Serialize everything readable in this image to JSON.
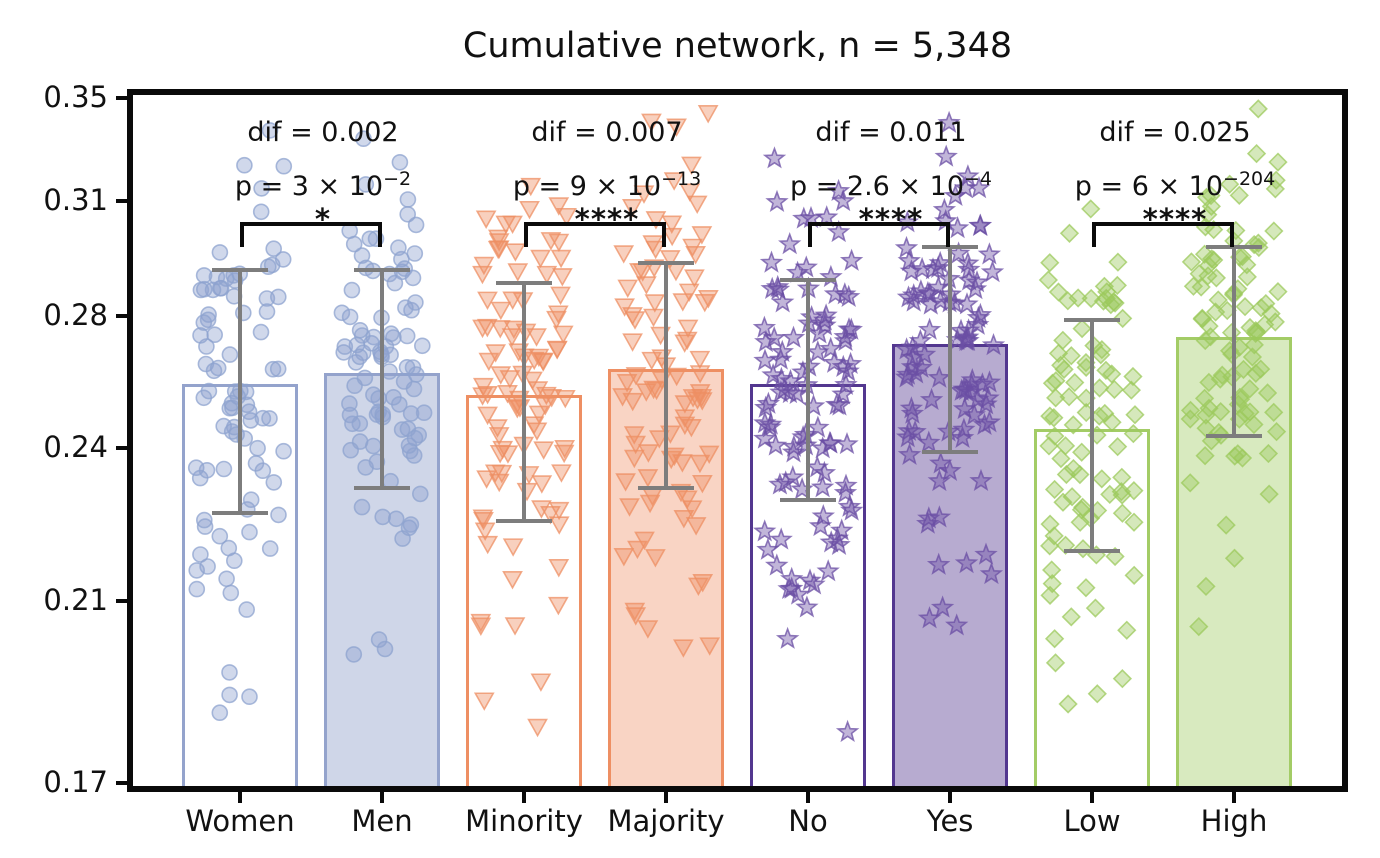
{
  "title": "Cumulative network, n = 5,348",
  "chart_data": {
    "type": "bar",
    "title": "Cumulative network, n = 5,348",
    "y_scale": "log",
    "ylim": [
      0.17,
      0.35
    ],
    "grid": false,
    "yticks": [
      {
        "value": 0.35,
        "label": "0.35"
      },
      {
        "value": 0.314,
        "label": "0.31"
      },
      {
        "value": 0.278,
        "label": "0.28"
      },
      {
        "value": 0.242,
        "label": "0.24"
      },
      {
        "value": 0.206,
        "label": "0.21"
      },
      {
        "value": 0.17,
        "label": "0.17"
      }
    ],
    "categories": [
      "Women",
      "Men",
      "Minority",
      "Majority",
      "No",
      "Yes",
      "Low",
      "High"
    ],
    "groups": [
      {
        "label": "Women",
        "mean": 0.259,
        "sd": 0.033,
        "filled": false,
        "marker": "circle",
        "edge_color": "#94a3cc",
        "fill_color": "rgba(148,163,204,0.45)",
        "marker_color": "#8ea3cf",
        "n_points": 88
      },
      {
        "label": "Men",
        "mean": 0.262,
        "sd": 0.03,
        "filled": true,
        "marker": "circle",
        "edge_color": "#94a3cc",
        "fill_color": "rgba(148,163,204,0.45)",
        "marker_color": "#8ea3cf",
        "n_points": 92
      },
      {
        "label": "Minority",
        "mean": 0.256,
        "sd": 0.032,
        "filled": false,
        "marker": "triangle",
        "edge_color": "#ee8f63",
        "fill_color": "rgba(238,143,99,0.38)",
        "marker_color": "#ee8f63",
        "n_points": 102
      },
      {
        "label": "Majority",
        "mean": 0.263,
        "sd": 0.031,
        "filled": true,
        "marker": "triangle",
        "edge_color": "#ee8f63",
        "fill_color": "rgba(238,143,99,0.38)",
        "marker_color": "#ee8f63",
        "n_points": 96
      },
      {
        "label": "No",
        "mean": 0.259,
        "sd": 0.03,
        "filled": false,
        "marker": "star",
        "edge_color": "#53378f",
        "fill_color": "rgba(83,55,143,0.42)",
        "marker_color": "#6b4fa4",
        "n_points": 108
      },
      {
        "label": "Yes",
        "mean": 0.27,
        "sd": 0.029,
        "filled": true,
        "marker": "star",
        "edge_color": "#53378f",
        "fill_color": "rgba(83,55,143,0.42)",
        "marker_color": "#6b4fa4",
        "n_points": 104
      },
      {
        "label": "Low",
        "mean": 0.247,
        "sd": 0.03,
        "filled": false,
        "marker": "diamond",
        "edge_color": "#a3cc66",
        "fill_color": "rgba(163,204,102,0.42)",
        "marker_color": "#9cc95c",
        "n_points": 96
      },
      {
        "label": "High",
        "mean": 0.272,
        "sd": 0.027,
        "filled": true,
        "marker": "diamond",
        "edge_color": "#a3cc66",
        "fill_color": "rgba(163,204,102,0.42)",
        "marker_color": "#9cc95c",
        "n_points": 100
      }
    ],
    "pairs": [
      {
        "dif": "dif = 0.002",
        "p_base": "p = 3 × 10",
        "p_exp": "−2",
        "stars": "*"
      },
      {
        "dif": "dif = 0.007",
        "p_base": "p = 9 × 10",
        "p_exp": "−13",
        "stars": "****"
      },
      {
        "dif": "dif = 0.011",
        "p_base": "p = 2.6 × 10",
        "p_exp": "−4",
        "stars": "****"
      },
      {
        "dif": "dif = 0.025",
        "p_base": "p = 6 × 10",
        "p_exp": "−204",
        "stars": "****"
      }
    ],
    "error_bar_color": "#7d7d7d",
    "frame_color": "#0a0a0a"
  }
}
